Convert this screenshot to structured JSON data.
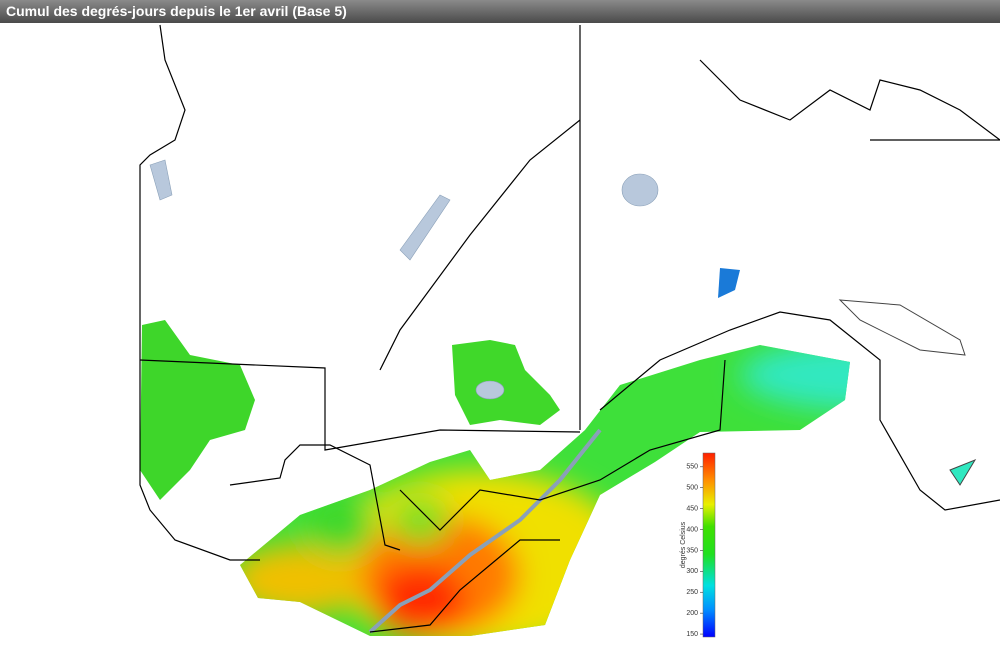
{
  "header": {
    "title": "Cumul des degrés-jours depuis le 1er avril (Base 5)"
  },
  "legend": {
    "label": "degrés Celsius",
    "range": [
      143,
      583
    ],
    "ticks": [
      150,
      200,
      250,
      300,
      350,
      400,
      450,
      500,
      550
    ]
  }
}
